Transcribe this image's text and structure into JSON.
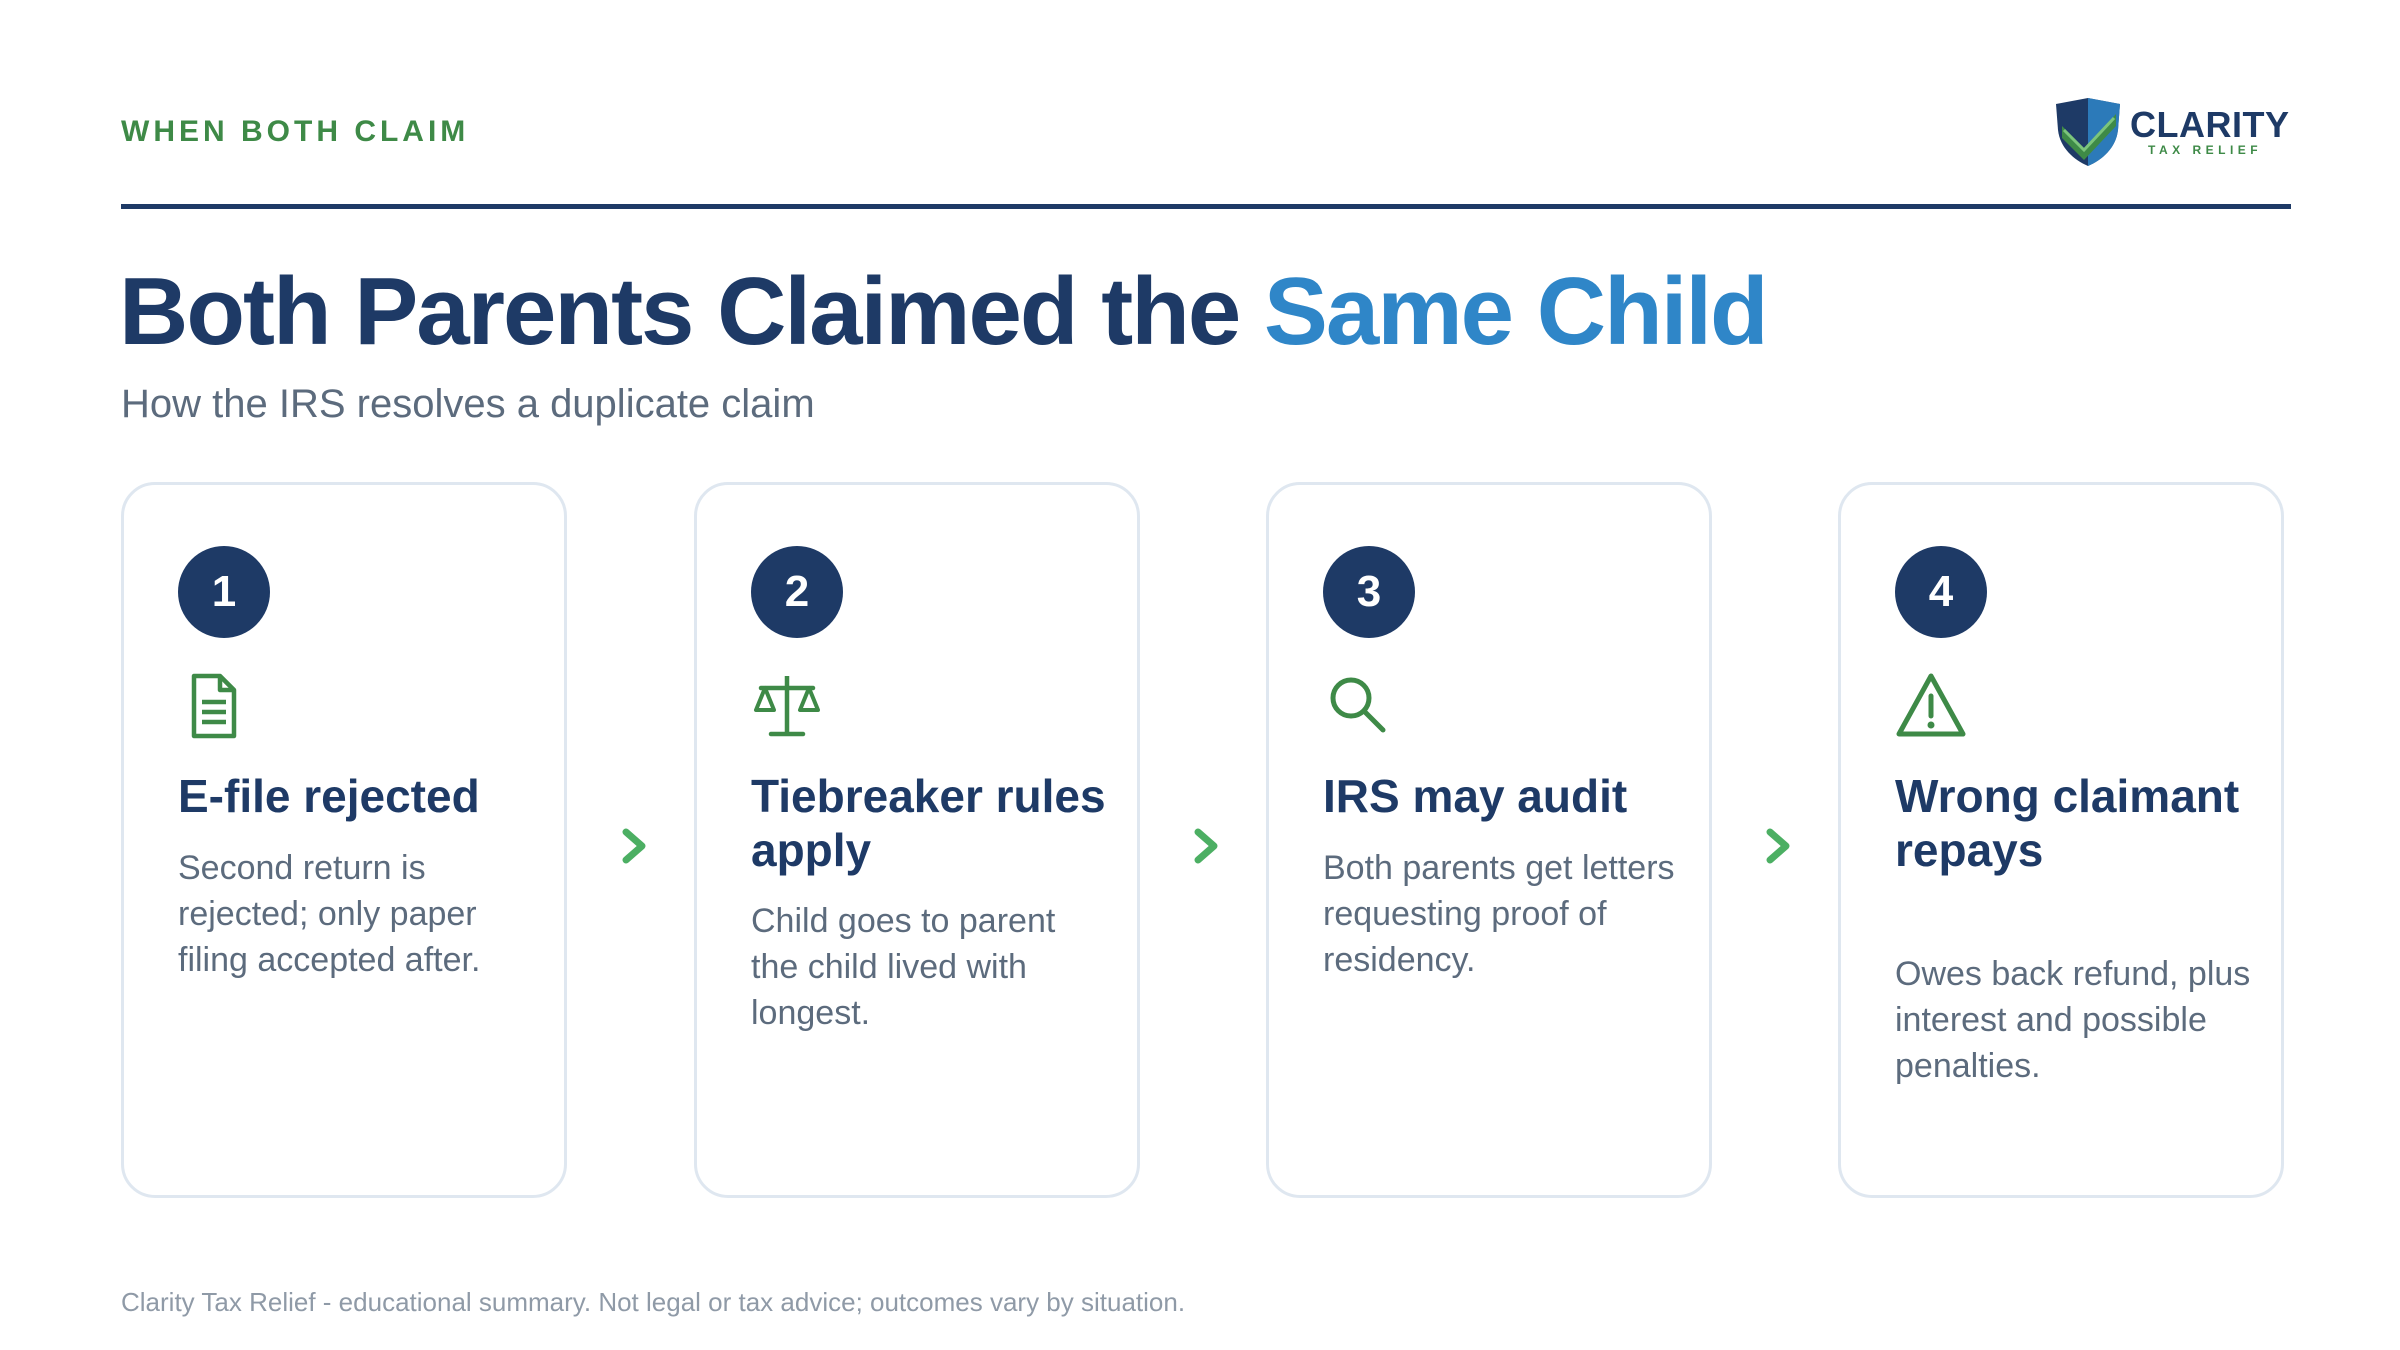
{
  "header": {
    "eyebrow": "WHEN BOTH CLAIM",
    "logo_name": "CLARITY",
    "logo_sub": "TAX RELIEF"
  },
  "title": {
    "main": "Both Parents Claimed the ",
    "accent": "Same Child",
    "subtitle": "How the IRS resolves a duplicate claim"
  },
  "steps": [
    {
      "number": "1",
      "icon": "document-icon",
      "title": "E-file rejected",
      "body": "Second return is rejected; only paper filing accepted after."
    },
    {
      "number": "2",
      "icon": "scales-icon",
      "title": "Tiebreaker rules apply",
      "body": "Child goes to parent the child lived with longest."
    },
    {
      "number": "3",
      "icon": "magnifier-icon",
      "title": "IRS may audit",
      "body": "Both parents get letters requesting proof of residency."
    },
    {
      "number": "4",
      "icon": "warning-icon",
      "title": "Wrong claimant repays",
      "body": "Owes back refund, plus interest and possible penalties."
    }
  ],
  "footer": "Clarity Tax Relief - educational summary. Not legal or tax advice; outcomes vary by situation.",
  "colors": {
    "navy": "#1e3a66",
    "accent_blue": "#2f86c8",
    "green": "#3e8a47",
    "muted_text": "#5c6b7d",
    "card_border": "#dfe7f0"
  }
}
